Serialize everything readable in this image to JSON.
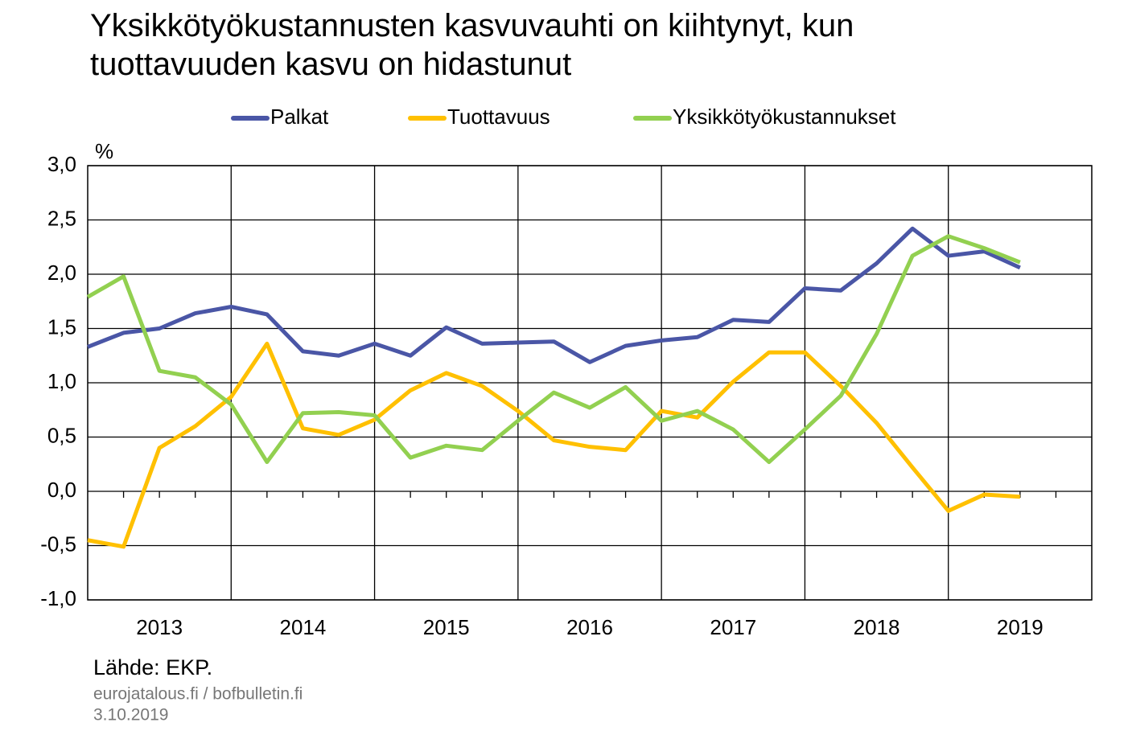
{
  "chart_data": {
    "type": "line",
    "title": "Yksikkötyökustannusten kasvuvauhti on kiihtynyt, kun tuottavuuden kasvu on hidastunut",
    "y_unit": "%",
    "categories": [
      "2013",
      "2014",
      "2015",
      "2016",
      "2017",
      "2018",
      "2019"
    ],
    "x": [
      2013,
      2013.25,
      2013.5,
      2013.75,
      2014,
      2014.25,
      2014.5,
      2014.75,
      2015,
      2015.25,
      2015.5,
      2015.75,
      2016,
      2016.25,
      2016.5,
      2016.75,
      2017,
      2017.25,
      2017.5,
      2017.75,
      2018,
      2018.25,
      2018.5,
      2018.75,
      2019,
      2019.25,
      2019.5
    ],
    "xlim": [
      2013,
      2020
    ],
    "series": [
      {
        "name": "Palkat",
        "color": "#4a56a6",
        "values": [
          1.33,
          1.46,
          1.5,
          1.64,
          1.7,
          1.63,
          1.29,
          1.25,
          1.36,
          1.25,
          1.51,
          1.36,
          1.37,
          1.38,
          1.19,
          1.34,
          1.39,
          1.42,
          1.58,
          1.56,
          1.87,
          1.85,
          2.1,
          2.42,
          2.17,
          2.21,
          2.06
        ]
      },
      {
        "name": "Tuottavuus",
        "color": "#ffc000",
        "values": [
          -0.45,
          -0.51,
          0.4,
          0.6,
          0.87,
          1.36,
          0.58,
          0.52,
          0.66,
          0.93,
          1.09,
          0.97,
          0.74,
          0.47,
          0.41,
          0.38,
          0.74,
          0.68,
          1.01,
          1.28,
          1.28,
          0.97,
          0.63,
          0.22,
          -0.18,
          -0.03,
          -0.05
        ]
      },
      {
        "name": "Yksikkötyökustannukset",
        "color": "#92d050",
        "values": [
          1.79,
          1.98,
          1.11,
          1.05,
          0.8,
          0.27,
          0.72,
          0.73,
          0.7,
          0.31,
          0.42,
          0.38,
          0.65,
          0.91,
          0.77,
          0.96,
          0.65,
          0.74,
          0.57,
          0.27,
          0.57,
          0.88,
          1.45,
          2.17,
          2.35,
          2.24,
          2.11
        ]
      }
    ],
    "ylim": [
      -1,
      3
    ],
    "yticks": [
      {
        "value": -1,
        "label": "-1,0"
      },
      {
        "value": -0.5,
        "label": "-0,5"
      },
      {
        "value": 0,
        "label": "0,0"
      },
      {
        "value": 0.5,
        "label": "0,5"
      },
      {
        "value": 1,
        "label": "1,0"
      },
      {
        "value": 1.5,
        "label": "1,5"
      },
      {
        "value": 2,
        "label": "2,0"
      },
      {
        "value": 2.5,
        "label": "2,5"
      },
      {
        "value": 3,
        "label": "3,0"
      }
    ],
    "grid": true,
    "legend": "top",
    "source": "Lähde: EKP.",
    "site": "eurojatalous.fi  / bofbulletin.fi",
    "date": "3.10.2019"
  }
}
